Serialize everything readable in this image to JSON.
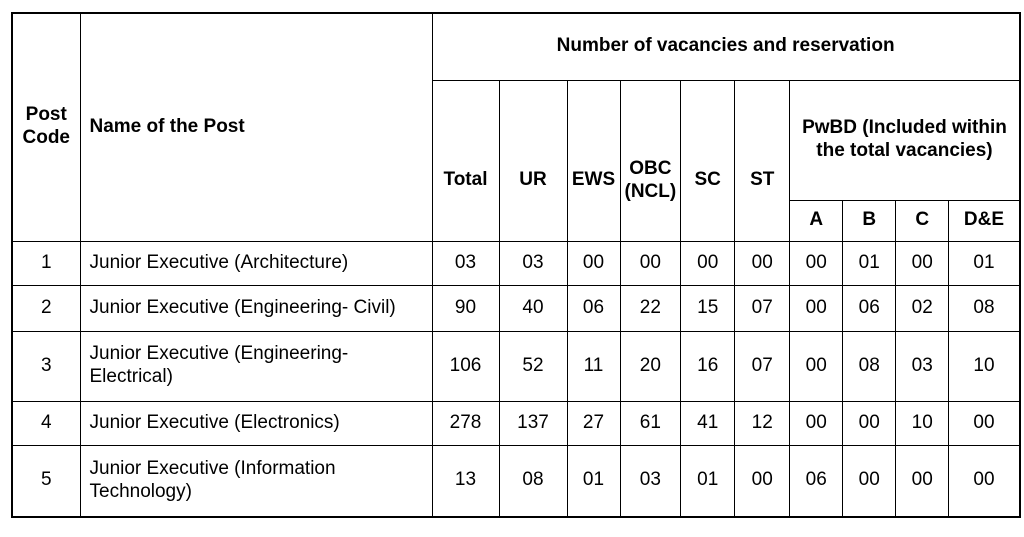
{
  "headers": {
    "post_code": "Post Code",
    "name_of_post": "Name of the Post",
    "vacancies_group": "Number of vacancies and reservation",
    "total": "Total",
    "ur": "UR",
    "ews": "EWS",
    "obc": "OBC (NCL)",
    "sc": "SC",
    "st": "ST",
    "pwbd_group": "PwBD (Included within the total vacancies)",
    "pwbd_a": "A",
    "pwbd_b": "B",
    "pwbd_c": "C",
    "pwbd_de": "D&E"
  },
  "rows": [
    {
      "code": "1",
      "name": "Junior Executive (Architecture)",
      "total": "03",
      "ur": "03",
      "ews": "00",
      "obc": "00",
      "sc": "00",
      "st": "00",
      "a": "00",
      "b": "01",
      "c": "00",
      "de": "01"
    },
    {
      "code": "2",
      "name": "Junior Executive (Engineering- Civil)",
      "total": "90",
      "ur": "40",
      "ews": "06",
      "obc": "22",
      "sc": "15",
      "st": "07",
      "a": "00",
      "b": "06",
      "c": "02",
      "de": "08"
    },
    {
      "code": "3",
      "name": "Junior Executive (Engineering- Electrical)",
      "total": "106",
      "ur": "52",
      "ews": "11",
      "obc": "20",
      "sc": "16",
      "st": "07",
      "a": "00",
      "b": "08",
      "c": "03",
      "de": "10"
    },
    {
      "code": "4",
      "name": "Junior Executive (Electronics)",
      "total": "278",
      "ur": "137",
      "ews": "27",
      "obc": "61",
      "sc": "41",
      "st": "12",
      "a": "00",
      "b": "00",
      "c": "10",
      "de": "00"
    },
    {
      "code": "5",
      "name": "Junior Executive (Information Technology)",
      "total": "13",
      "ur": "08",
      "ews": "01",
      "obc": "03",
      "sc": "01",
      "st": "00",
      "a": "06",
      "b": "00",
      "c": "00",
      "de": "00"
    }
  ]
}
